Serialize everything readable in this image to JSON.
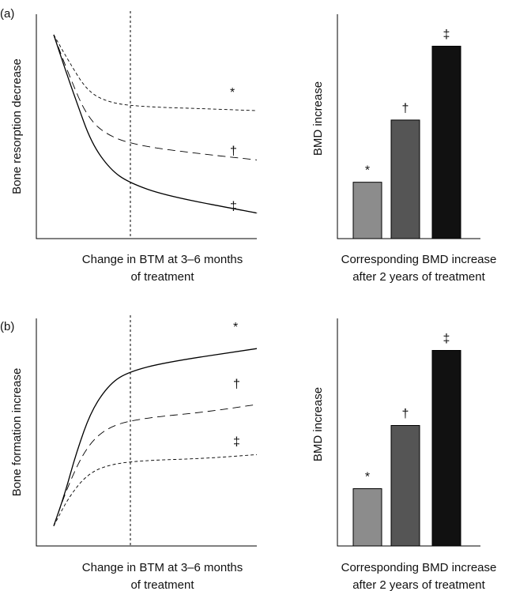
{
  "panels": [
    {
      "label": "(a)",
      "curve_chart": {
        "type": "line",
        "ylabel": "Bone resorption decrease",
        "caption_lines": [
          "Change in BTM at 3–6 months",
          "of treatment"
        ],
        "series": [
          {
            "marker": "*",
            "style": "dotted",
            "points": [
              [
                0,
                100
              ],
              [
                0.2,
                86
              ],
              [
                0.45,
                70
              ],
              [
                0.75,
                64
              ],
              [
                1.2,
                62
              ],
              [
                2.0,
                61
              ],
              [
                2.7,
                60
              ]
            ]
          },
          {
            "marker": "†",
            "style": "dashed",
            "points": [
              [
                0,
                100
              ],
              [
                0.2,
                79
              ],
              [
                0.45,
                56
              ],
              [
                0.75,
                46
              ],
              [
                1.2,
                41
              ],
              [
                2.0,
                37
              ],
              [
                2.7,
                34
              ]
            ]
          },
          {
            "marker": "‡",
            "style": "solid",
            "points": [
              [
                0,
                100
              ],
              [
                0.15,
                82
              ],
              [
                0.3,
                65
              ],
              [
                0.5,
                43
              ],
              [
                0.75,
                29
              ],
              [
                1.0,
                22
              ],
              [
                1.5,
                15
              ],
              [
                2.7,
                6
              ]
            ]
          }
        ]
      },
      "bar_chart": {
        "type": "bar",
        "ylabel": "BMD increase",
        "caption_lines": [
          "Corresponding BMD increase",
          "after 2 years of treatment"
        ],
        "ylim": [
          0,
          100
        ],
        "bars": [
          {
            "marker": "*",
            "value": 29,
            "color": "#8c8c8c"
          },
          {
            "marker": "†",
            "value": 61,
            "color": "#555555"
          },
          {
            "marker": "‡",
            "value": 99,
            "color": "#111111"
          }
        ]
      }
    },
    {
      "label": "(b)",
      "curve_chart": {
        "type": "line",
        "ylabel": "Bone formation increase",
        "caption_lines": [
          "Change in BTM at 3–6 months",
          "of treatment"
        ],
        "series": [
          {
            "marker": "*",
            "style": "solid",
            "points": [
              [
                0,
                3
              ],
              [
                0.15,
                20
              ],
              [
                0.3,
                41
              ],
              [
                0.5,
                63
              ],
              [
                0.75,
                77
              ],
              [
                1.0,
                83
              ],
              [
                1.5,
                88
              ],
              [
                2.7,
                95
              ]
            ]
          },
          {
            "marker": "†",
            "style": "dashed",
            "points": [
              [
                0,
                3
              ],
              [
                0.2,
                25
              ],
              [
                0.45,
                45
              ],
              [
                0.75,
                55
              ],
              [
                1.2,
                59
              ],
              [
                2.0,
                62
              ],
              [
                2.7,
                66
              ]
            ]
          },
          {
            "marker": "‡",
            "style": "dotted",
            "points": [
              [
                0,
                3
              ],
              [
                0.2,
                18
              ],
              [
                0.45,
                30
              ],
              [
                0.75,
                35
              ],
              [
                1.2,
                37
              ],
              [
                2.0,
                38
              ],
              [
                2.7,
                40
              ]
            ]
          }
        ]
      },
      "bar_chart": {
        "type": "bar",
        "ylabel": "BMD increase",
        "caption_lines": [
          "Corresponding BMD increase",
          "after 2 years of treatment"
        ],
        "ylim": [
          0,
          100
        ],
        "bars": [
          {
            "marker": "*",
            "value": 29,
            "color": "#8c8c8c"
          },
          {
            "marker": "†",
            "value": 61,
            "color": "#555555"
          },
          {
            "marker": "‡",
            "value": 99,
            "color": "#111111"
          }
        ]
      }
    }
  ]
}
